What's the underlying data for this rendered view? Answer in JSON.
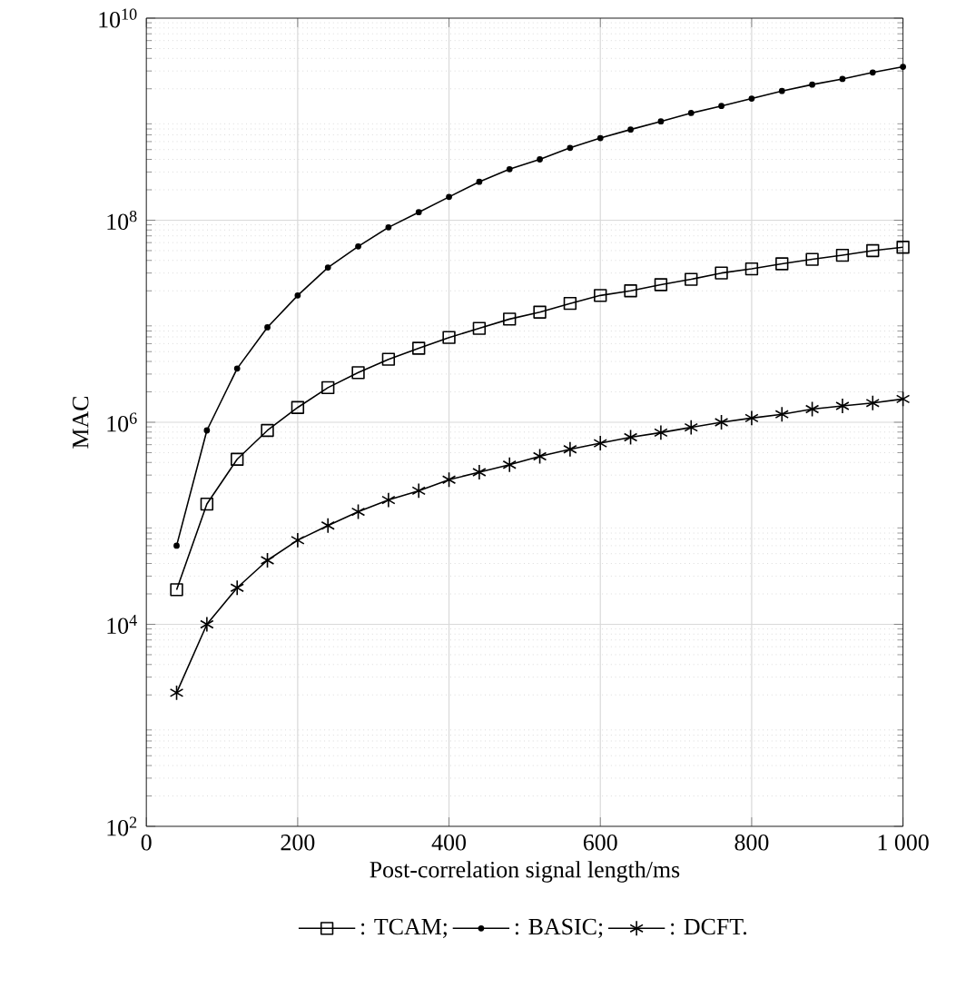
{
  "chart_data": {
    "type": "line",
    "xlabel": "Post-correlation signal length/ms",
    "ylabel": "MAC",
    "x": [
      40,
      80,
      120,
      160,
      200,
      240,
      280,
      320,
      360,
      400,
      440,
      480,
      520,
      560,
      600,
      640,
      680,
      720,
      760,
      800,
      840,
      880,
      920,
      960,
      1000
    ],
    "series": [
      {
        "name": ": TCAM;",
        "color": "#000000",
        "marker": "square",
        "values": [
          22000,
          155000,
          430000,
          830000,
          1400000,
          2200000,
          3100000,
          4200000,
          5400000,
          6900000,
          8500000,
          10500000,
          12300000,
          15000000,
          18000000,
          20000000,
          23000000,
          26000000,
          30000000,
          33000000,
          37000000,
          41000000,
          45000000,
          50000000,
          54000000
        ]
      },
      {
        "name": ": BASIC;",
        "color": "#000000",
        "marker": "circle",
        "values": [
          60000,
          830000,
          3400000,
          8700000,
          18000000,
          34000000,
          55000000,
          85000000,
          120000000,
          170000000,
          240000000,
          320000000,
          400000000,
          520000000,
          650000000,
          790000000,
          950000000,
          1150000000,
          1350000000,
          1600000000,
          1900000000,
          2200000000,
          2500000000,
          2900000000,
          3300000000
        ]
      },
      {
        "name": ": DCFT.",
        "color": "#000000",
        "marker": "cross",
        "values": [
          2100,
          10000,
          23000,
          43000,
          68000,
          95000,
          130000,
          170000,
          210000,
          270000,
          320000,
          380000,
          460000,
          540000,
          620000,
          710000,
          790000,
          890000,
          1000000,
          1100000,
          1200000,
          1350000,
          1450000,
          1550000,
          1700000
        ]
      }
    ],
    "xlim": [
      0,
      1000
    ],
    "ylim": [
      100,
      10000000000
    ],
    "xticks": [
      0,
      200,
      400,
      600,
      800,
      {
        "value": 1000,
        "label": "1 000"
      }
    ],
    "yticks": [
      {
        "value": 100,
        "label": "10$^{2}$"
      },
      {
        "value": 10000,
        "label": "10$^{4}$"
      },
      {
        "value": 1000000,
        "label": "10$^{6}$"
      },
      {
        "value": 100000000,
        "label": "10$^{8}$"
      },
      {
        "value": 10000000000,
        "label": "10$^{10}$"
      }
    ],
    "log": "y",
    "grid": true,
    "legend": "bottom",
    "line_style": "solid"
  }
}
